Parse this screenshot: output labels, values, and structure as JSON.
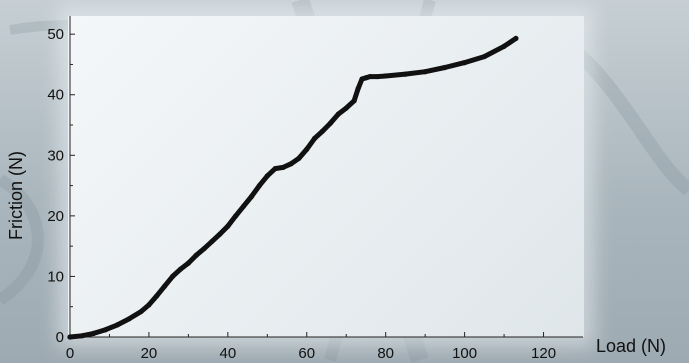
{
  "chart_data": {
    "type": "line",
    "title": "",
    "xlabel": "Load (N)",
    "ylabel": "Friction (N)",
    "xlim": [
      0,
      130
    ],
    "ylim": [
      0,
      53
    ],
    "x_ticks": [
      0,
      20,
      40,
      60,
      80,
      100,
      120
    ],
    "y_ticks": [
      10,
      20,
      30,
      40,
      50
    ],
    "y_origin_tick": 0,
    "grid": false,
    "legend": "none",
    "series": [
      {
        "color": "#111111",
        "x": [
          0,
          3,
          6,
          9,
          12,
          15,
          18,
          20,
          22,
          24,
          26,
          28,
          30,
          32,
          34,
          36,
          38,
          40,
          42,
          44,
          46,
          48,
          50,
          52,
          54,
          56,
          58,
          60,
          62,
          64,
          66,
          68,
          70,
          72,
          73,
          74,
          75,
          76,
          78,
          80,
          85,
          90,
          95,
          100,
          105,
          110,
          113
        ],
        "y": [
          0,
          0.2,
          0.6,
          1.2,
          2.0,
          3.0,
          4.2,
          5.3,
          6.8,
          8.4,
          10.0,
          11.2,
          12.2,
          13.5,
          14.6,
          15.8,
          17.0,
          18.3,
          20.0,
          21.6,
          23.2,
          25.0,
          26.6,
          27.8,
          28.0,
          28.6,
          29.5,
          31.0,
          32.8,
          34.0,
          35.3,
          36.8,
          37.8,
          39.0,
          41.0,
          42.6,
          42.8,
          43.0,
          43.0,
          43.1,
          43.4,
          43.8,
          44.5,
          45.3,
          46.3,
          48.0,
          49.3
        ]
      }
    ]
  },
  "colors": {
    "line": "#111111",
    "panel": "#eef2f5",
    "background": "#b5c0c6"
  }
}
